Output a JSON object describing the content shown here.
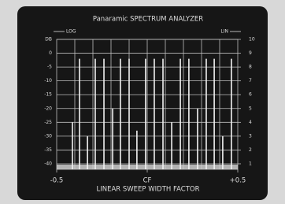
{
  "chart_data": {
    "type": "spectrum",
    "title": "Panaramic SPECTRUM ANALYZER",
    "xlabel": "LINEAR SWEEP WIDTH FACTOR",
    "left_scale_label": "LOG",
    "right_scale_label": "LIN",
    "color": "#f2f2f2",
    "x": [
      -0.413,
      -0.374,
      -0.33,
      -0.287,
      -0.239,
      -0.191,
      -0.148,
      -0.1,
      -0.057,
      -0.009,
      0.039,
      0.087,
      0.135,
      0.183,
      0.23,
      0.278,
      0.326,
      0.37,
      0.417,
      0.465
    ],
    "values": [
      -25,
      -2,
      -30,
      -2,
      -2,
      -20,
      -2,
      -2,
      -28,
      -2,
      -2,
      -2,
      -25,
      -2,
      -2,
      -20,
      -2,
      -2,
      -30,
      -2
    ],
    "xlim": [
      -0.5,
      0.5
    ],
    "xticks": [
      -0.5,
      {
        "value": 0,
        "label": "CF"
      },
      {
        "value": 0.5,
        "label": "+0.5"
      }
    ],
    "ylim": [
      -42,
      5
    ],
    "yticks": [
      {
        "value": 5,
        "label": "DB"
      },
      0,
      -5,
      -10,
      -15,
      -20,
      -25,
      -30,
      -35,
      -40
    ],
    "y2lim": [
      0.6,
      10
    ],
    "y2ticks": [
      10,
      9,
      8,
      7,
      6,
      5,
      4,
      3,
      2,
      1
    ],
    "grid": true
  }
}
